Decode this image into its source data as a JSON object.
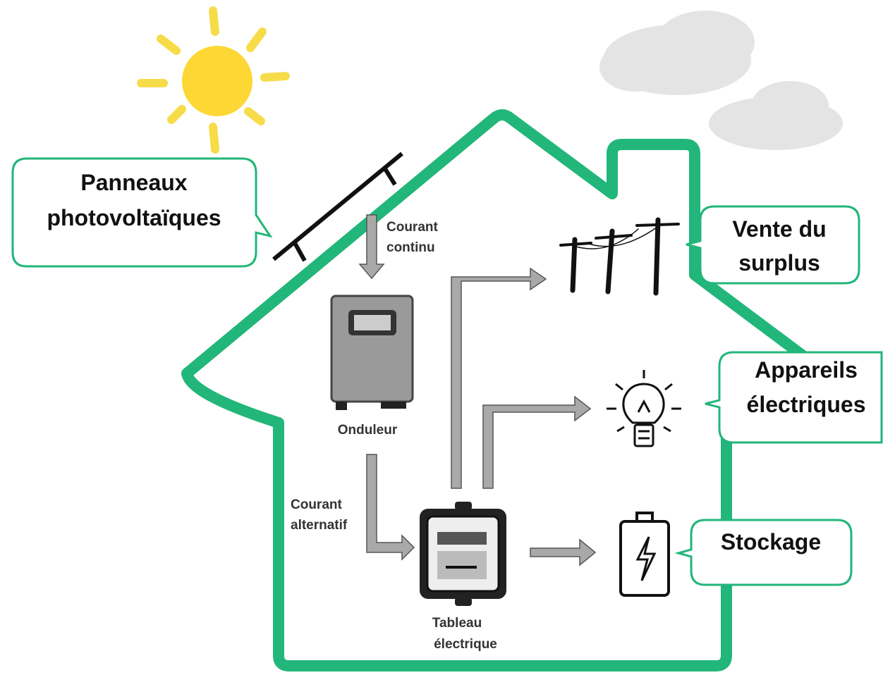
{
  "callouts": [
    {
      "lines": [
        "Panneaux",
        "photovoltaïques"
      ]
    },
    {
      "lines": [
        "Vente du",
        "surplus"
      ]
    },
    {
      "lines": [
        "Appareils",
        "électriques"
      ]
    },
    {
      "lines": [
        "Stockage"
      ]
    }
  ],
  "labels": [
    {
      "lines": [
        "Courant",
        "continu"
      ]
    },
    {
      "lines": [
        "Courant",
        "alternatif"
      ]
    },
    {
      "lines": [
        "Onduleur"
      ]
    },
    {
      "lines": [
        "Tableau",
        "électrique"
      ]
    }
  ]
}
